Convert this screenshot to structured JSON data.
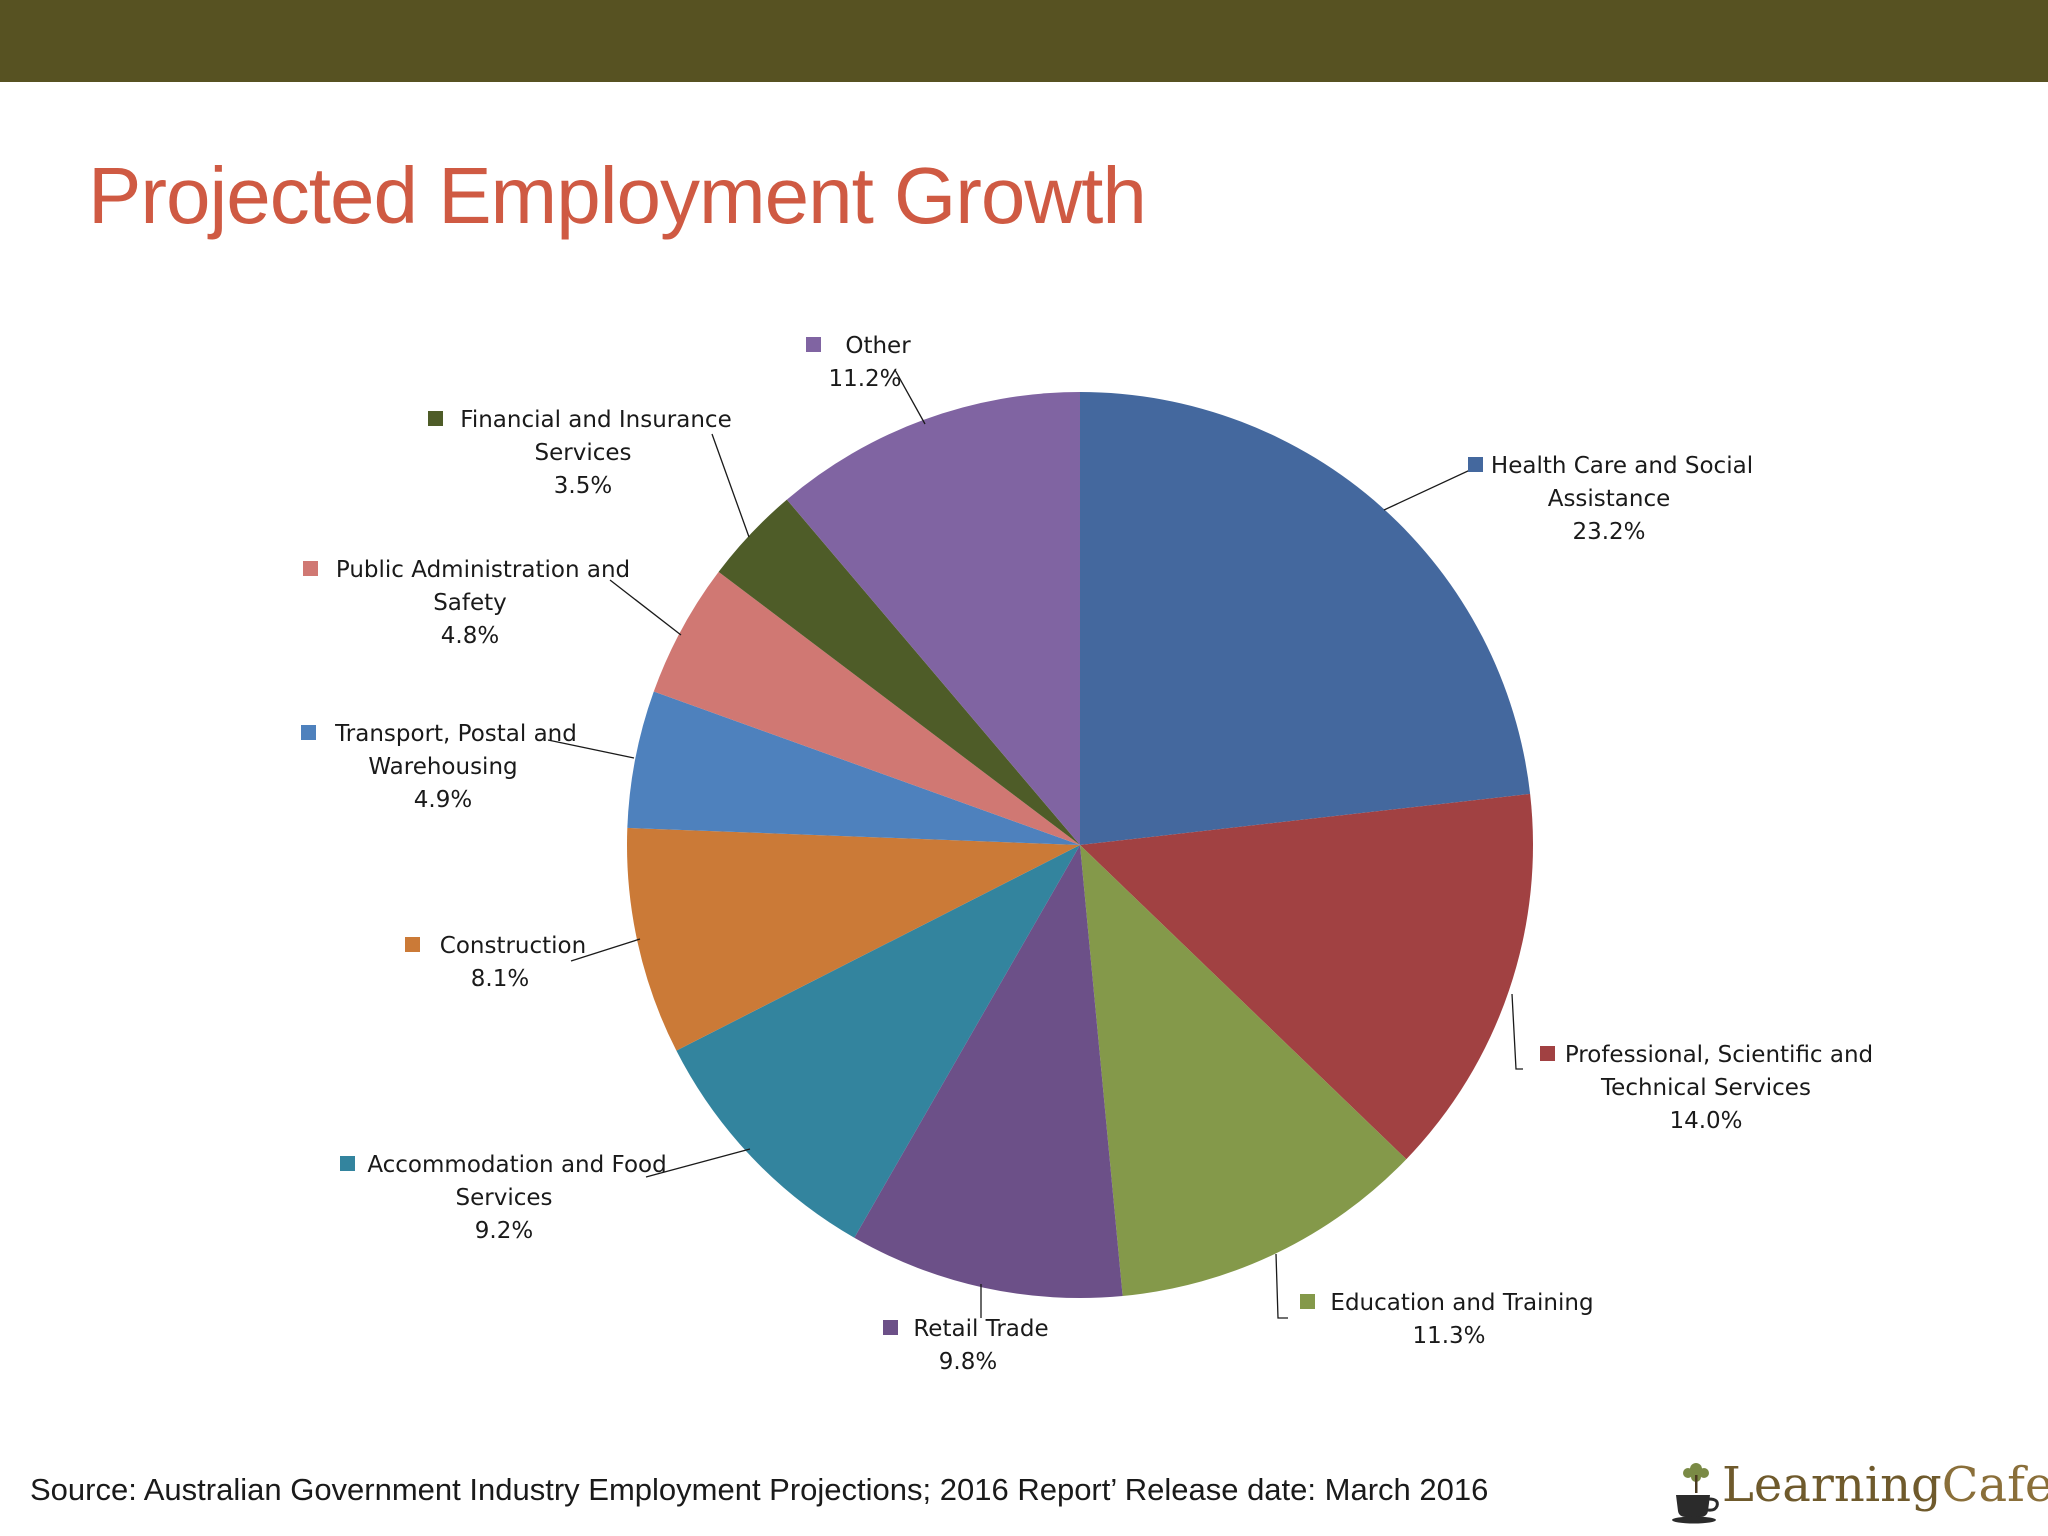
{
  "slide": {
    "title": "Projected Employment Growth",
    "source": "Source: Australian Government Industry Employment Projections; 2016 Report’ Release date: March 2016",
    "logo_text_a": "Learning",
    "logo_text_b": "Cafe"
  },
  "chart_data": {
    "type": "pie",
    "title": "",
    "start_angle": "12 o'clock",
    "direction": "clockwise",
    "slices": [
      {
        "label_lines": [
          "Health Care and Social",
          "Assistance"
        ],
        "value": 23.2,
        "value_label": "23.2%",
        "color": "#44689e"
      },
      {
        "label_lines": [
          "Professional, Scientific and",
          "Technical Services"
        ],
        "value": 14.0,
        "value_label": "14.0%",
        "color": "#a14142"
      },
      {
        "label_lines": [
          "Education and Training"
        ],
        "value": 11.3,
        "value_label": "11.3%",
        "color": "#84994a"
      },
      {
        "label_lines": [
          "Retail Trade"
        ],
        "value": 9.8,
        "value_label": "9.8%",
        "color": "#6c5088"
      },
      {
        "label_lines": [
          "Accommodation and Food",
          "Services"
        ],
        "value": 9.2,
        "value_label": "9.2%",
        "color": "#33849e"
      },
      {
        "label_lines": [
          "Construction"
        ],
        "value": 8.1,
        "value_label": "8.1%",
        "color": "#cb7a37"
      },
      {
        "label_lines": [
          "Transport, Postal and",
          "Warehousing"
        ],
        "value": 4.9,
        "value_label": "4.9%",
        "color": "#4e81bd"
      },
      {
        "label_lines": [
          "Public Administration and",
          "Safety"
        ],
        "value": 4.8,
        "value_label": "4.8%",
        "color": "#d07873"
      },
      {
        "label_lines": [
          "Financial and Insurance",
          "Services"
        ],
        "value": 3.5,
        "value_label": "3.5%",
        "color": "#4e5c28"
      },
      {
        "label_lines": [
          "Other"
        ],
        "value": 11.2,
        "value_label": "11.2%",
        "color": "#8064a2"
      }
    ]
  }
}
